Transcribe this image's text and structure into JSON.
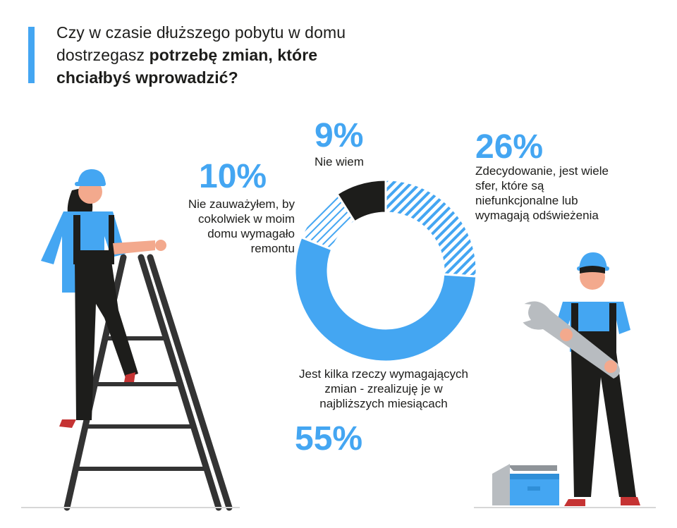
{
  "title": {
    "line1": "Czy w czasie dłuższego pobytu w domu",
    "line2_plain": "dostrzegasz ",
    "line2_bold": "potrzebę zmian, które",
    "line3_bold": "chciałbyś wprowadzić?"
  },
  "colors": {
    "accent": "#44a6f2",
    "dark": "#1d1d1b",
    "skin": "#f3a98d",
    "grey": "#b8bcc0"
  },
  "illustration": {
    "woman": "worker-woman-on-ladder",
    "man": "worker-man-holding-wrench",
    "toolbox": "toolbox-icon"
  },
  "chart_data": {
    "type": "pie",
    "style": "donut",
    "title": "",
    "slices": [
      {
        "percent_label": "26%",
        "value": 26,
        "label": "Zdecydowanie, jest wiele sfer, które są niefunkcjonalne lub wymagają odświeżenia",
        "fill": "hatched-blue"
      },
      {
        "percent_label": "55%",
        "value": 55,
        "label": "Jest kilka rzeczy wymagających zmian - zrealizuję je w najbliższych miesiącach",
        "fill": "solid-blue"
      },
      {
        "percent_label": "10%",
        "value": 10,
        "label": "Nie zauważyłem, by cokolwiek w moim domu wymagało remontu",
        "fill": "hatched-light-blue"
      },
      {
        "percent_label": "9%",
        "value": 9,
        "label": "Nie wiem",
        "fill": "solid-black"
      }
    ]
  }
}
